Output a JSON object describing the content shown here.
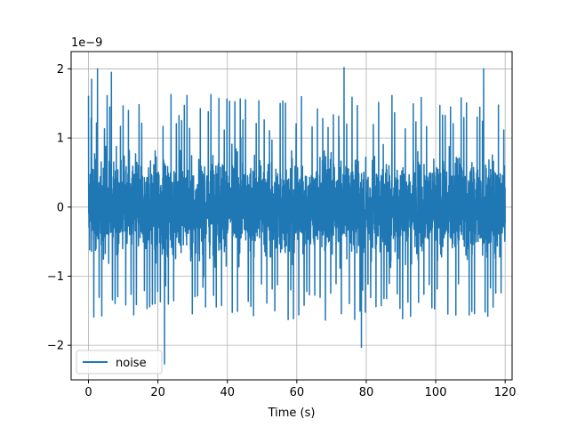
{
  "chart_data": {
    "type": "line",
    "title": "",
    "xlabel": "Time (s)",
    "ylabel": "",
    "y_offset_text": "1e−9",
    "y_scale": 1e-09,
    "xlim": [
      -5,
      122
    ],
    "ylim": [
      -2.5,
      2.25
    ],
    "xticks": [
      0,
      20,
      40,
      60,
      80,
      100,
      120
    ],
    "xtick_labels": [
      "0",
      "20",
      "40",
      "60",
      "80",
      "100",
      "120"
    ],
    "yticks": [
      -2,
      -1,
      0,
      1,
      2
    ],
    "ytick_labels": [
      "−2",
      "−1",
      "0",
      "1",
      "2"
    ],
    "grid": true,
    "legend_position": "lower-left",
    "series": [
      {
        "name": "noise",
        "color": "#1f77b4",
        "x_range": [
          0,
          120
        ],
        "typical_range": [
          -1.3,
          1.4
        ],
        "peaks": [
          {
            "x": 0.9,
            "y": 1.85
          },
          {
            "x": 2.6,
            "y": 2.0
          },
          {
            "x": 6.6,
            "y": 1.95
          },
          {
            "x": 21.9,
            "y": -2.27
          },
          {
            "x": 73.6,
            "y": 2.02
          },
          {
            "x": 78.6,
            "y": -2.03
          },
          {
            "x": 113.8,
            "y": 2.0
          }
        ]
      }
    ]
  }
}
